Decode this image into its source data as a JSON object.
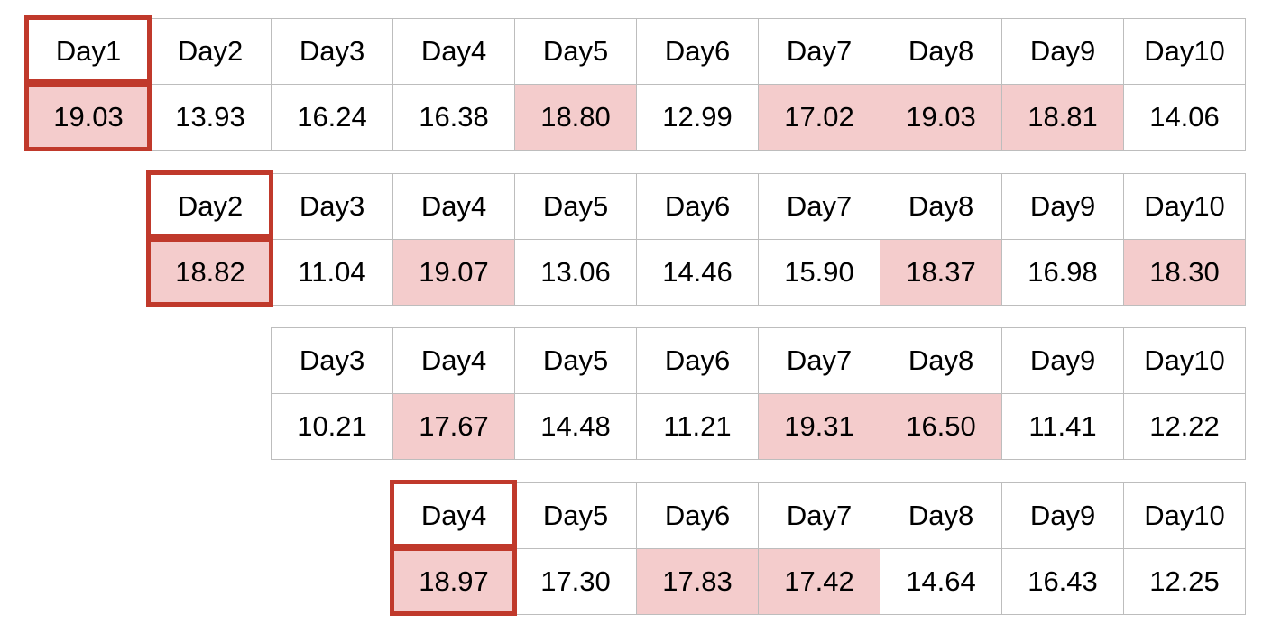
{
  "highlight_color": "#f4cccc",
  "outline_color": "#c0392b",
  "tables": [
    {
      "days": [
        "Day1",
        "Day2",
        "Day3",
        "Day4",
        "Day5",
        "Day6",
        "Day7",
        "Day8",
        "Day9",
        "Day10"
      ],
      "values": [
        "19.03",
        "13.93",
        "16.24",
        "16.38",
        "18.80",
        "12.99",
        "17.02",
        "19.03",
        "18.81",
        "14.06"
      ],
      "highlighted": [
        true,
        false,
        false,
        false,
        true,
        false,
        true,
        true,
        true,
        false
      ],
      "outlined_first": true
    },
    {
      "days": [
        "Day2",
        "Day3",
        "Day4",
        "Day5",
        "Day6",
        "Day7",
        "Day8",
        "Day9",
        "Day10"
      ],
      "values": [
        "18.82",
        "11.04",
        "19.07",
        "13.06",
        "14.46",
        "15.90",
        "18.37",
        "16.98",
        "18.30"
      ],
      "highlighted": [
        true,
        false,
        true,
        false,
        false,
        false,
        true,
        false,
        true
      ],
      "outlined_first": true
    },
    {
      "days": [
        "Day3",
        "Day4",
        "Day5",
        "Day6",
        "Day7",
        "Day8",
        "Day9",
        "Day10"
      ],
      "values": [
        "10.21",
        "17.67",
        "14.48",
        "11.21",
        "19.31",
        "16.50",
        "11.41",
        "12.22"
      ],
      "highlighted": [
        false,
        true,
        false,
        false,
        true,
        true,
        false,
        false
      ],
      "outlined_first": false
    },
    {
      "days": [
        "Day4",
        "Day5",
        "Day6",
        "Day7",
        "Day8",
        "Day9",
        "Day10"
      ],
      "values": [
        "18.97",
        "17.30",
        "17.83",
        "17.42",
        "14.64",
        "16.43",
        "12.25"
      ],
      "highlighted": [
        true,
        false,
        true,
        true,
        false,
        false,
        false
      ],
      "outlined_first": true
    }
  ]
}
